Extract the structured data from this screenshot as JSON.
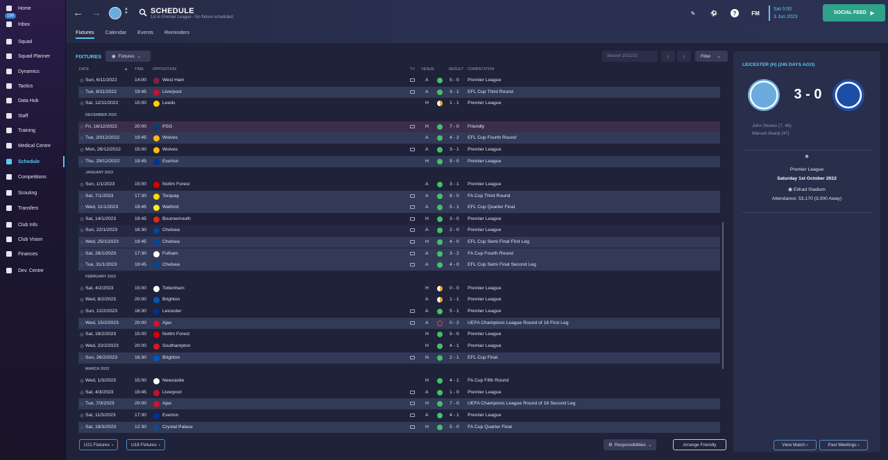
{
  "sidebar": {
    "items": [
      {
        "label": "Home",
        "icon": "home-icon"
      },
      {
        "label": "Inbox",
        "icon": "inbox-icon",
        "badge": "150"
      },
      {
        "label": "Squad",
        "icon": "squad-icon"
      },
      {
        "label": "Squad Planner",
        "icon": "squad-planner-icon"
      },
      {
        "label": "Dynamics",
        "icon": "dynamics-icon"
      },
      {
        "label": "Tactics",
        "icon": "tactics-icon"
      },
      {
        "label": "Data Hub",
        "icon": "data-hub-icon"
      },
      {
        "label": "Staff",
        "icon": "staff-icon"
      },
      {
        "label": "Training",
        "icon": "training-icon"
      },
      {
        "label": "Medical Centre",
        "icon": "medical-icon"
      },
      {
        "label": "Schedule",
        "icon": "schedule-icon",
        "active": true
      },
      {
        "label": "Competitions",
        "icon": "trophy-icon"
      },
      {
        "label": "Scouting",
        "icon": "scouting-icon"
      },
      {
        "label": "Transfers",
        "icon": "transfers-icon"
      },
      {
        "label": "Club Info",
        "icon": "shield-icon"
      },
      {
        "label": "Club Vision",
        "icon": "vision-icon"
      },
      {
        "label": "Finances",
        "icon": "finances-icon"
      },
      {
        "label": "Dev. Centre",
        "icon": "dev-centre-icon"
      }
    ]
  },
  "header": {
    "title": "SCHEDULE",
    "subtitle": "1st in Premier League - No fixture scheduled.",
    "tabs": [
      "Fixtures",
      "Calendar",
      "Events",
      "Reminders"
    ],
    "fm_logo": "FM",
    "date_time": "Sat 0:00",
    "date": "3 Jun 2023",
    "social_feed": "SOCIAL FEED"
  },
  "main": {
    "title": "FIXTURES",
    "fixtures_dropdown": "Fixtures",
    "season": "Season 2022/23",
    "filter": "Filter",
    "columns": {
      "date": "DATE",
      "time": "TIME",
      "opposition": "OPPOSITION",
      "tv": "TV",
      "venue": "VENUE",
      "result": "RESULT",
      "competition": "COMPETITION"
    },
    "months": [
      "DECEMBER 2022",
      "JANUARY 2023",
      "FEBRUARY 2023",
      "MARCH 2023"
    ],
    "rows": [
      {
        "date": "Sun, 6/11/2022",
        "time": "14:00",
        "opp": "West Ham",
        "tv": true,
        "venue": "A",
        "outcome": "win",
        "score": "5 - 0",
        "comp": "Premier League",
        "crest": "#7a263a"
      },
      {
        "date": "Tue, 8/11/2022",
        "time": "19:45",
        "opp": "Liverpool",
        "tv": true,
        "venue": "A",
        "outcome": "win",
        "score": "3 - 1",
        "comp": "EFL Cup Third Round",
        "crest": "#c8102e"
      },
      {
        "date": "Sat, 12/11/2022",
        "time": "15:00",
        "opp": "Leeds",
        "tv": false,
        "venue": "H",
        "outcome": "draw",
        "score": "1 - 1",
        "comp": "Premier League",
        "crest": "#ffcd00"
      },
      {
        "date": "Fri, 16/12/2022",
        "time": "20:00",
        "opp": "PSG",
        "tv": true,
        "venue": "H",
        "outcome": "win",
        "score": "7 - 0",
        "comp": "Friendly",
        "crest": "#004170"
      },
      {
        "date": "Tue, 20/12/2022",
        "time": "19:45",
        "opp": "Wolves",
        "tv": false,
        "venue": "A",
        "outcome": "win",
        "score": "4 - 2",
        "comp": "EFL Cup Fourth Round",
        "crest": "#fdb913"
      },
      {
        "date": "Mon, 26/12/2022",
        "time": "15:00",
        "opp": "Wolves",
        "tv": true,
        "venue": "A",
        "outcome": "win",
        "score": "3 - 1",
        "comp": "Premier League",
        "crest": "#fdb913"
      },
      {
        "date": "Thu, 29/12/2022",
        "time": "19:45",
        "opp": "Everton",
        "tv": false,
        "venue": "H",
        "outcome": "win",
        "score": "9 - 0",
        "comp": "Premier League",
        "crest": "#003399"
      },
      {
        "date": "Sun, 1/1/2023",
        "time": "15:00",
        "opp": "Nottm Forest",
        "tv": false,
        "venue": "A",
        "outcome": "win",
        "score": "3 - 1",
        "comp": "Premier League",
        "crest": "#dd0000"
      },
      {
        "date": "Sat, 7/1/2023",
        "time": "17:30",
        "opp": "Torquay",
        "tv": true,
        "venue": "A",
        "outcome": "win",
        "score": "8 - 0",
        "comp": "FA Cup Third Round",
        "crest": "#ffd700"
      },
      {
        "date": "Wed, 11/1/2023",
        "time": "19:45",
        "opp": "Watford",
        "tv": true,
        "venue": "A",
        "outcome": "win",
        "score": "5 - 1",
        "comp": "EFL Cup Quarter Final",
        "crest": "#fbee23"
      },
      {
        "date": "Sat, 14/1/2023",
        "time": "19:45",
        "opp": "Bournemouth",
        "tv": true,
        "venue": "H",
        "outcome": "win",
        "score": "3 - 0",
        "comp": "Premier League",
        "crest": "#da291c"
      },
      {
        "date": "Sun, 22/1/2023",
        "time": "16:30",
        "opp": "Chelsea",
        "tv": true,
        "venue": "A",
        "outcome": "win",
        "score": "2 - 0",
        "comp": "Premier League",
        "crest": "#034694"
      },
      {
        "date": "Wed, 25/1/2023",
        "time": "19:45",
        "opp": "Chelsea",
        "tv": true,
        "venue": "H",
        "outcome": "win",
        "score": "4 - 0",
        "comp": "EFL Cup Semi Final First Leg",
        "crest": "#034694"
      },
      {
        "date": "Sat, 28/1/2023",
        "time": "17:30",
        "opp": "Fulham",
        "tv": true,
        "venue": "A",
        "outcome": "win",
        "score": "3 - 2",
        "comp": "FA Cup Fourth Round",
        "crest": "#ffffff"
      },
      {
        "date": "Tue, 31/1/2023",
        "time": "19:45",
        "opp": "Chelsea",
        "tv": true,
        "venue": "A",
        "outcome": "win",
        "score": "4 - 0",
        "comp": "EFL Cup Semi Final Second Leg",
        "crest": "#034694"
      },
      {
        "date": "Sat, 4/2/2023",
        "time": "15:00",
        "opp": "Tottenham",
        "tv": false,
        "venue": "H",
        "outcome": "draw",
        "score": "0 - 0",
        "comp": "Premier League",
        "crest": "#ffffff"
      },
      {
        "date": "Wed, 8/2/2023",
        "time": "20:00",
        "opp": "Brighton",
        "tv": false,
        "venue": "A",
        "outcome": "draw",
        "score": "1 - 1",
        "comp": "Premier League",
        "crest": "#0057b8"
      },
      {
        "date": "Sun, 12/2/2023",
        "time": "16:30",
        "opp": "Leicester",
        "tv": true,
        "venue": "A",
        "outcome": "win",
        "score": "5 - 1",
        "comp": "Premier League",
        "crest": "#003090"
      },
      {
        "date": "Wed, 15/2/2023",
        "time": "20:00",
        "opp": "Ajax",
        "tv": true,
        "venue": "A",
        "outcome": "loss",
        "score": "0 - 2",
        "comp": "UEFA Champions League Round of 16 First Leg",
        "crest": "#d2122e"
      },
      {
        "date": "Sat, 18/2/2023",
        "time": "15:00",
        "opp": "Nottm Forest",
        "tv": false,
        "venue": "H",
        "outcome": "win",
        "score": "5 - 0",
        "comp": "Premier League",
        "crest": "#dd0000"
      },
      {
        "date": "Wed, 22/2/2023",
        "time": "20:00",
        "opp": "Southampton",
        "tv": false,
        "venue": "H",
        "outcome": "win",
        "score": "4 - 1",
        "comp": "Premier League",
        "crest": "#d71920"
      },
      {
        "date": "Sun, 26/2/2023",
        "time": "16:30",
        "opp": "Brighton",
        "tv": true,
        "venue": "N",
        "outcome": "win",
        "score": "2 - 1",
        "comp": "EFL Cup Final",
        "crest": "#0057b8"
      },
      {
        "date": "Wed, 1/3/2023",
        "time": "15:00",
        "opp": "Newcastle",
        "tv": false,
        "venue": "H",
        "outcome": "win",
        "score": "4 - 1",
        "comp": "FA Cup Fifth Round",
        "crest": "#ffffff"
      },
      {
        "date": "Sat, 4/3/2023",
        "time": "19:45",
        "opp": "Liverpool",
        "tv": true,
        "venue": "A",
        "outcome": "win",
        "score": "1 - 0",
        "comp": "Premier League",
        "crest": "#c8102e"
      },
      {
        "date": "Tue, 7/3/2023",
        "time": "20:00",
        "opp": "Ajax",
        "tv": true,
        "venue": "H",
        "outcome": "win",
        "score": "7 - 0",
        "comp": "UEFA Champions League Round of 16 Second Leg",
        "crest": "#d2122e"
      },
      {
        "date": "Sat, 11/3/2023",
        "time": "17:30",
        "opp": "Everton",
        "tv": true,
        "venue": "A",
        "outcome": "win",
        "score": "4 - 1",
        "comp": "Premier League",
        "crest": "#003399"
      },
      {
        "date": "Sat, 18/3/2023",
        "time": "12:30",
        "opp": "Crystal Palace",
        "tv": true,
        "venue": "H",
        "outcome": "win",
        "score": "5 - 0",
        "comp": "FA Cup Quarter Final",
        "crest": "#1b458f"
      }
    ],
    "bottom": {
      "u21": "U21 Fixtures",
      "u18": "U18 Fixtures",
      "responsibilities": "Responsibilities",
      "arrange": "Arrange Friendly"
    }
  },
  "panel": {
    "title": "LEICESTER (H) (245 DAYS AGO)",
    "score": "3 - 0",
    "scorers": [
      "John Stones (7, 49)",
      "Manuel Akanji (47)"
    ],
    "competition": "Premier League",
    "date": "Saturday 1st October 2022",
    "stadium": "Etihad Stadium",
    "attendance": "Attendance: 53,170 (3,000 Away)",
    "view_match": "View Match",
    "past_meetings": "Past Meetings"
  },
  "colors": {
    "accent": "#5fc7f5",
    "win": "#43c06a",
    "draw": "#f0a92b",
    "loss": "#e2434a",
    "social": "#2ea38a"
  }
}
